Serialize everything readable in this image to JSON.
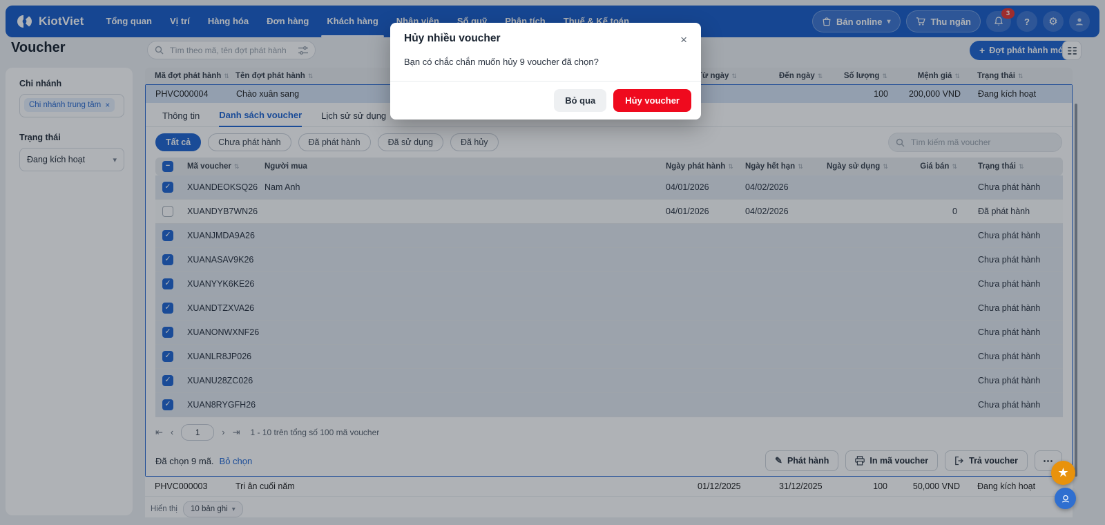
{
  "colors": {
    "primary": "#2166d1",
    "navbar_blue": "#1b5ec9",
    "danger_red": "#ef0a1e",
    "badge_red": "#e53935",
    "star_orange": "#e8920c",
    "support_blue": "#2f6fd0",
    "selected_row": "#e3e9f1",
    "outer_selected": "#d5e3f5"
  },
  "icons": {
    "plus": "+",
    "close": "×",
    "chevron_down": "▾",
    "sort": "⇅",
    "more": "⋯",
    "pencil": "✎",
    "gear": "⚙",
    "star": "★",
    "help": "?",
    "first": "⇤",
    "prev": "‹",
    "next": "›",
    "last": "⇥",
    "check": "✓",
    "minus": "−"
  },
  "navbar": {
    "brand": "KiotViet",
    "items": [
      {
        "label": "Tổng quan"
      },
      {
        "label": "Vị trí"
      },
      {
        "label": "Hàng hóa"
      },
      {
        "label": "Đơn hàng"
      },
      {
        "label": "Khách hàng",
        "active": true
      },
      {
        "label": "Nhân viên"
      },
      {
        "label": "Sổ quỹ"
      },
      {
        "label": "Phân tích"
      },
      {
        "label": "Thuế & Kế toán"
      }
    ],
    "ban_online": "Bán online",
    "thu_ngan": "Thu ngân",
    "notification_count": "3"
  },
  "page": {
    "title": "Voucher",
    "search_placeholder": "Tìm theo mã, tên đợt phát hành",
    "new_button_label": "Đợt phát hành mới"
  },
  "sidebar": {
    "branch_label": "Chi nhánh",
    "branch_tag": "Chi nhánh trung tâm",
    "status_label": "Trạng thái",
    "status_value": "Đang kích hoạt"
  },
  "outer_table": {
    "headers": [
      "Mã đợt phát hành",
      "Tên đợt phát hành",
      "Từ ngày",
      "Đến ngày",
      "Số lượng",
      "Mệnh giá",
      "Trạng thái"
    ],
    "selected_row": {
      "code": "PHVC000004",
      "name": "Chào xuân sang",
      "from": "",
      "to": "",
      "qty": "100",
      "value": "200,000 VND",
      "status": "Đang kích hoạt"
    },
    "second_row": {
      "code": "PHVC000003",
      "name": "Tri ân cuối năm",
      "from": "01/12/2025",
      "to": "31/12/2025",
      "qty": "100",
      "value": "50,000 VND",
      "status": "Đang kích hoạt"
    }
  },
  "detail": {
    "tabs": [
      {
        "label": "Thông tin"
      },
      {
        "label": "Danh sách voucher",
        "active": true
      },
      {
        "label": "Lịch sử sử dụng"
      }
    ],
    "pills": [
      {
        "label": "Tất cả",
        "active": true
      },
      {
        "label": "Chưa phát hành"
      },
      {
        "label": "Đã phát hành"
      },
      {
        "label": "Đã sử dụng"
      },
      {
        "label": "Đã hủy"
      }
    ],
    "search_placeholder": "Tìm kiếm mã voucher",
    "table": {
      "headers": [
        "Mã voucher",
        "Người mua",
        "Ngày phát hành",
        "Ngày hết hạn",
        "Ngày sử dụng",
        "Giá bán",
        "Trạng thái"
      ],
      "rows": [
        {
          "checked": true,
          "code": "XUANDEOKSQ26",
          "buyer": "Nam Anh",
          "issued": "04/01/2026",
          "expires": "04/02/2026",
          "used": "",
          "price": "",
          "status": "Chưa phát hành"
        },
        {
          "checked": false,
          "code": "XUANDYB7WN26",
          "buyer": "",
          "issued": "04/01/2026",
          "expires": "04/02/2026",
          "used": "",
          "price": "0",
          "status": "Đã phát hành"
        },
        {
          "checked": true,
          "code": "XUANJMDA9A26",
          "buyer": "",
          "issued": "",
          "expires": "",
          "used": "",
          "price": "",
          "status": "Chưa phát hành"
        },
        {
          "checked": true,
          "code": "XUANASAV9K26",
          "buyer": "",
          "issued": "",
          "expires": "",
          "used": "",
          "price": "",
          "status": "Chưa phát hành"
        },
        {
          "checked": true,
          "code": "XUANYYK6KE26",
          "buyer": "",
          "issued": "",
          "expires": "",
          "used": "",
          "price": "",
          "status": "Chưa phát hành"
        },
        {
          "checked": true,
          "code": "XUANDTZXVA26",
          "buyer": "",
          "issued": "",
          "expires": "",
          "used": "",
          "price": "",
          "status": "Chưa phát hành"
        },
        {
          "checked": true,
          "code": "XUANONWXNF26",
          "buyer": "",
          "issued": "",
          "expires": "",
          "used": "",
          "price": "",
          "status": "Chưa phát hành"
        },
        {
          "checked": true,
          "code": "XUANLR8JP026",
          "buyer": "",
          "issued": "",
          "expires": "",
          "used": "",
          "price": "",
          "status": "Chưa phát hành"
        },
        {
          "checked": true,
          "code": "XUANU28ZC026",
          "buyer": "",
          "issued": "",
          "expires": "",
          "used": "",
          "price": "",
          "status": "Chưa phát hành"
        },
        {
          "checked": true,
          "code": "XUAN8RYGFH26",
          "buyer": "",
          "issued": "",
          "expires": "",
          "used": "",
          "price": "",
          "status": "Chưa phát hành"
        }
      ]
    },
    "pagination": {
      "page": "1",
      "summary": "1 - 10 trên tổng số 100 mã voucher"
    },
    "selection": {
      "text": "Đã chọn 9 mã.",
      "clear_label": "Bỏ chọn"
    },
    "actions": {
      "issue": "Phát hành",
      "print": "In mã voucher",
      "return": "Trả voucher"
    }
  },
  "footer": {
    "label": "Hiển thị",
    "per_page": "10 bản ghi"
  },
  "modal": {
    "title": "Hủy nhiều voucher",
    "message": "Bạn có chắc chắn muốn hủy 9 voucher đã chọn?",
    "cancel_label": "Bỏ qua",
    "confirm_label": "Hủy voucher"
  }
}
